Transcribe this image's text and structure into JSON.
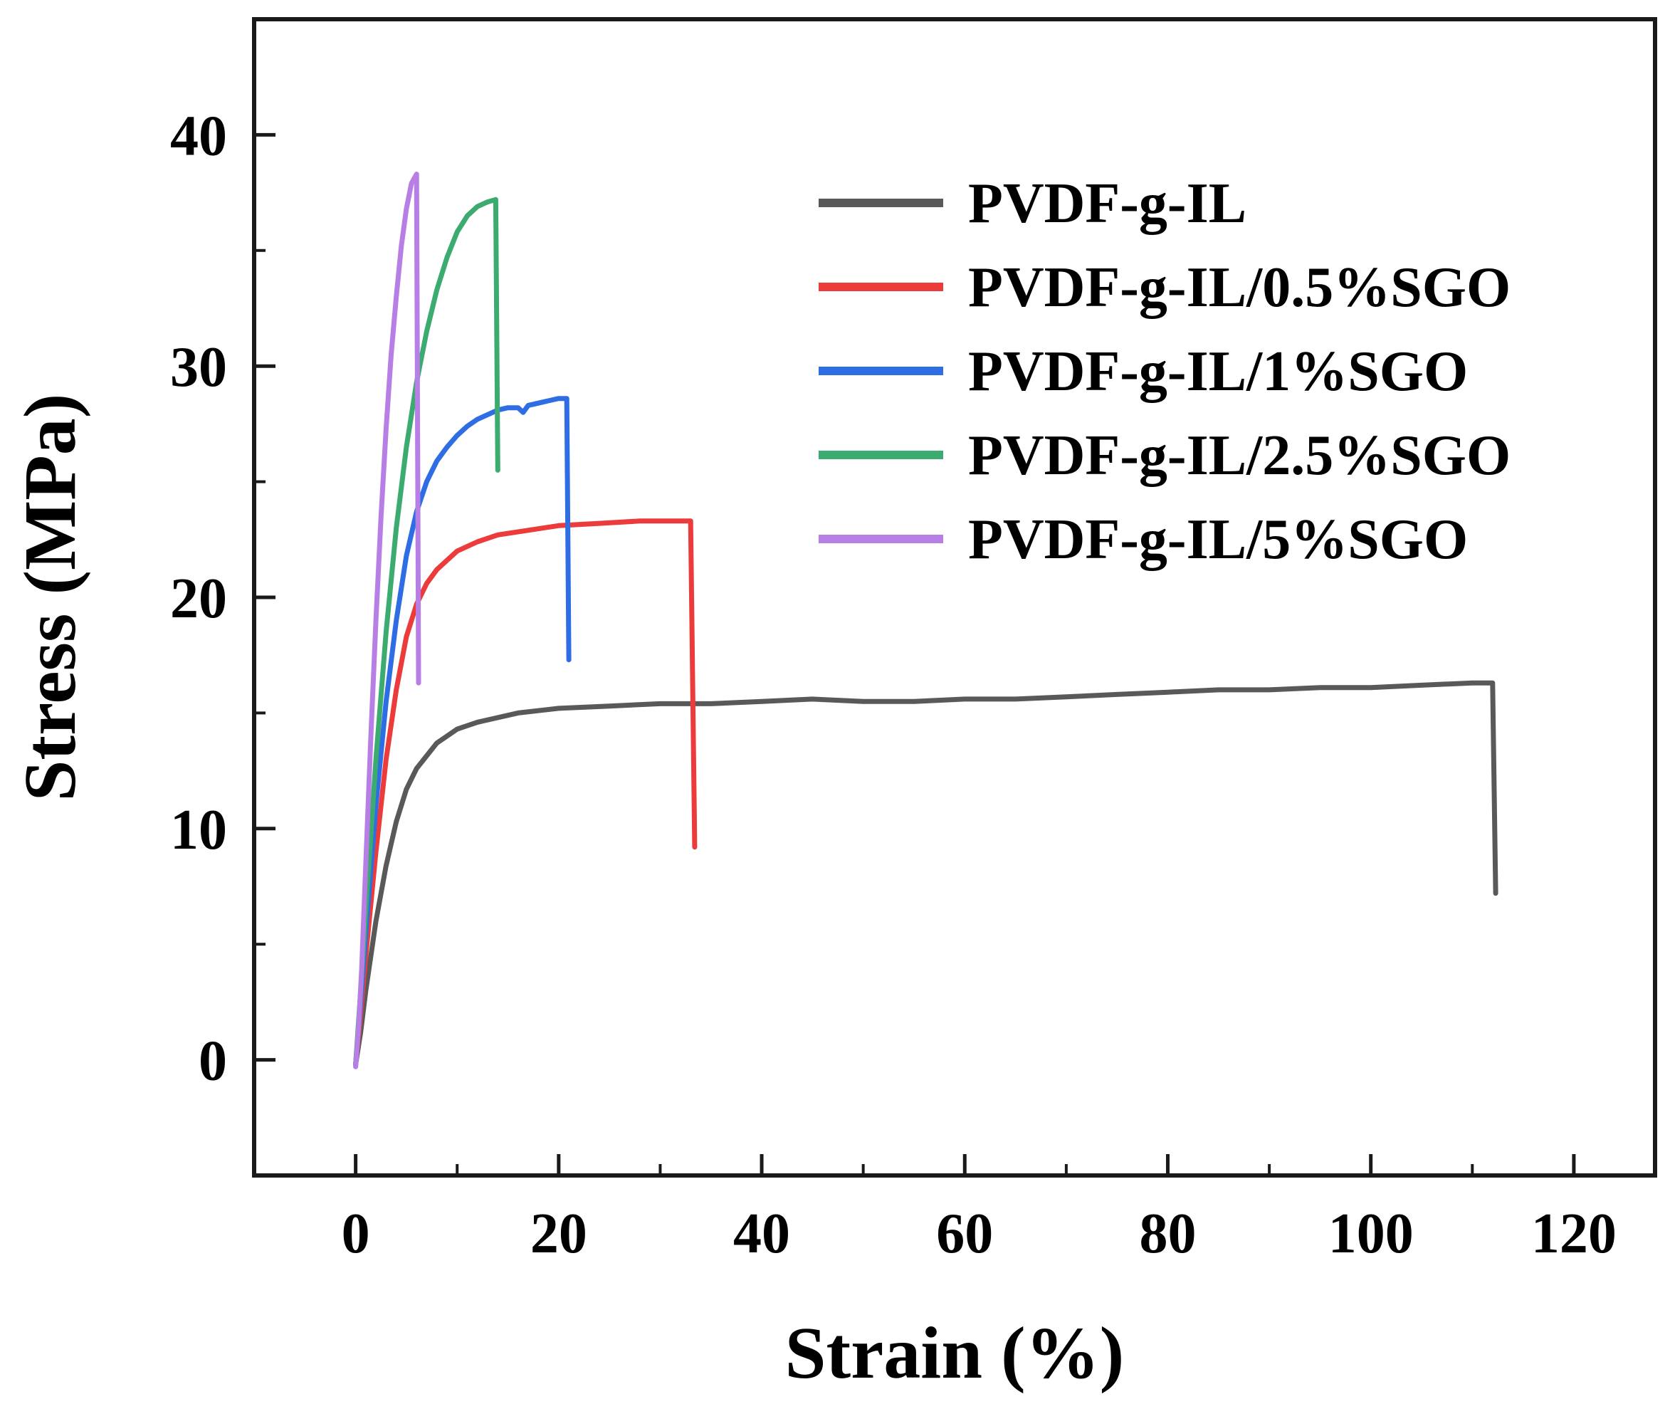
{
  "chart_data": {
    "type": "line",
    "title": "",
    "xlabel": "Strain (%)",
    "ylabel": "Stress (MPa)",
    "xlim": [
      -10,
      128
    ],
    "ylim": [
      -5,
      45
    ],
    "xticks": [
      0,
      20,
      40,
      60,
      80,
      100,
      120
    ],
    "yticks": [
      0,
      10,
      20,
      30,
      40
    ],
    "x_minor_ticks": [
      10,
      30,
      50,
      70,
      90,
      110
    ],
    "y_minor_ticks": [
      5,
      15,
      25,
      35
    ],
    "grid": false,
    "legend_position": "top-right",
    "frame_color": "#1a1a1a",
    "series": [
      {
        "name": "PVDF-g-IL",
        "color": "#595959",
        "points": [
          [
            0,
            -0.2
          ],
          [
            0.5,
            1.2
          ],
          [
            1,
            3
          ],
          [
            2,
            6
          ],
          [
            3,
            8.4
          ],
          [
            4,
            10.3
          ],
          [
            5,
            11.7
          ],
          [
            6,
            12.6
          ],
          [
            8,
            13.7
          ],
          [
            10,
            14.3
          ],
          [
            12,
            14.6
          ],
          [
            16,
            15.0
          ],
          [
            20,
            15.2
          ],
          [
            25,
            15.3
          ],
          [
            30,
            15.4
          ],
          [
            35,
            15.4
          ],
          [
            40,
            15.5
          ],
          [
            45,
            15.6
          ],
          [
            50,
            15.5
          ],
          [
            55,
            15.5
          ],
          [
            60,
            15.6
          ],
          [
            65,
            15.6
          ],
          [
            70,
            15.7
          ],
          [
            75,
            15.8
          ],
          [
            80,
            15.9
          ],
          [
            85,
            16.0
          ],
          [
            90,
            16.0
          ],
          [
            95,
            16.1
          ],
          [
            100,
            16.1
          ],
          [
            105,
            16.2
          ],
          [
            110,
            16.3
          ],
          [
            112,
            16.3
          ],
          [
            112.3,
            7.2
          ]
        ]
      },
      {
        "name": "PVDF-g-IL/0.5%SGO",
        "color": "#ec3b3b",
        "points": [
          [
            0,
            -0.2
          ],
          [
            0.5,
            2
          ],
          [
            1,
            4.5
          ],
          [
            2,
            9
          ],
          [
            3,
            13
          ],
          [
            4,
            16
          ],
          [
            5,
            18.3
          ],
          [
            6,
            19.7
          ],
          [
            7,
            20.6
          ],
          [
            8,
            21.2
          ],
          [
            10,
            22.0
          ],
          [
            12,
            22.4
          ],
          [
            14,
            22.7
          ],
          [
            17,
            22.9
          ],
          [
            20,
            23.1
          ],
          [
            24,
            23.2
          ],
          [
            28,
            23.3
          ],
          [
            31,
            23.3
          ],
          [
            33,
            23.3
          ],
          [
            33.4,
            9.2
          ]
        ]
      },
      {
        "name": "PVDF-g-IL/1%SGO",
        "color": "#2e6de4",
        "points": [
          [
            0,
            -0.2
          ],
          [
            0.5,
            2.5
          ],
          [
            1,
            5.5
          ],
          [
            2,
            11
          ],
          [
            3,
            15.5
          ],
          [
            4,
            19
          ],
          [
            5,
            21.8
          ],
          [
            6,
            23.7
          ],
          [
            7,
            25.0
          ],
          [
            8,
            25.9
          ],
          [
            9,
            26.5
          ],
          [
            10,
            27.0
          ],
          [
            11,
            27.4
          ],
          [
            12,
            27.7
          ],
          [
            13,
            27.9
          ],
          [
            14,
            28.1
          ],
          [
            15,
            28.2
          ],
          [
            16,
            28.2
          ],
          [
            16.5,
            28.0
          ],
          [
            17,
            28.3
          ],
          [
            18,
            28.4
          ],
          [
            19,
            28.5
          ],
          [
            20,
            28.6
          ],
          [
            20.8,
            28.6
          ],
          [
            21,
            17.3
          ]
        ]
      },
      {
        "name": "PVDF-g-IL/2.5%SGO",
        "color": "#3bab6f",
        "points": [
          [
            0,
            -0.2
          ],
          [
            0.5,
            3
          ],
          [
            1,
            6.5
          ],
          [
            2,
            13
          ],
          [
            3,
            18.5
          ],
          [
            4,
            23
          ],
          [
            5,
            26.5
          ],
          [
            6,
            29.3
          ],
          [
            7,
            31.5
          ],
          [
            8,
            33.3
          ],
          [
            9,
            34.7
          ],
          [
            10,
            35.8
          ],
          [
            11,
            36.5
          ],
          [
            12,
            36.9
          ],
          [
            13,
            37.1
          ],
          [
            13.8,
            37.2
          ],
          [
            14,
            25.5
          ]
        ]
      },
      {
        "name": "PVDF-g-IL/5%SGO",
        "color": "#b77ee6",
        "points": [
          [
            0,
            -0.3
          ],
          [
            0.3,
            1.5
          ],
          [
            0.6,
            4
          ],
          [
            1,
            8.5
          ],
          [
            1.5,
            14
          ],
          [
            2,
            19
          ],
          [
            2.5,
            23.5
          ],
          [
            3,
            27.3
          ],
          [
            3.5,
            30.5
          ],
          [
            4,
            33
          ],
          [
            4.5,
            35.2
          ],
          [
            5,
            36.8
          ],
          [
            5.5,
            37.9
          ],
          [
            6,
            38.3
          ],
          [
            6.2,
            16.3
          ]
        ]
      }
    ]
  }
}
